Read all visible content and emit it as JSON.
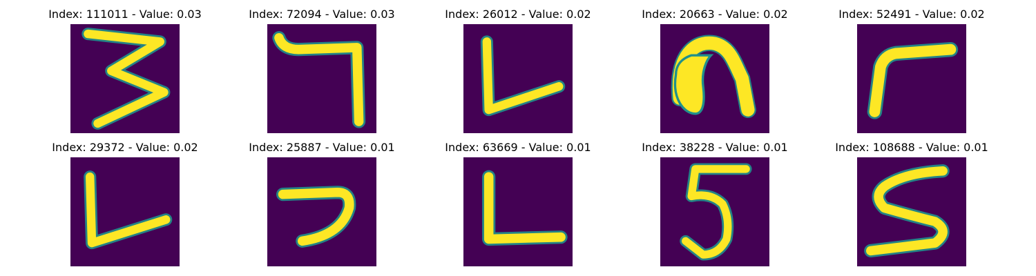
{
  "figure": {
    "colors": {
      "background": "#440154",
      "stroke": "#fde725",
      "edge": "#21918c"
    },
    "panels": [
      {
        "title": "Index: 111011 - Value: 0.03",
        "glyph": "3-shaped digit"
      },
      {
        "title": "Index: 72094 - Value: 0.03",
        "glyph": "7-shaped digit"
      },
      {
        "title": "Index: 26012 - Value: 0.02",
        "glyph": "L-shaped digit"
      },
      {
        "title": "Index: 20663 - Value: 0.02",
        "glyph": "arch-shaped digit"
      },
      {
        "title": "Index: 52491 - Value: 0.02",
        "glyph": "r-shaped digit"
      },
      {
        "title": "Index: 29372 - Value: 0.02",
        "glyph": "L-shaped digit"
      },
      {
        "title": "Index: 25887 - Value: 0.01",
        "glyph": "hook-shaped digit"
      },
      {
        "title": "Index: 63669 - Value: 0.01",
        "glyph": "L-shaped digit"
      },
      {
        "title": "Index: 38228 - Value: 0.01",
        "glyph": "5-shaped digit"
      },
      {
        "title": "Index: 108688 - Value: 0.01",
        "glyph": "S-shaped digit"
      }
    ]
  }
}
